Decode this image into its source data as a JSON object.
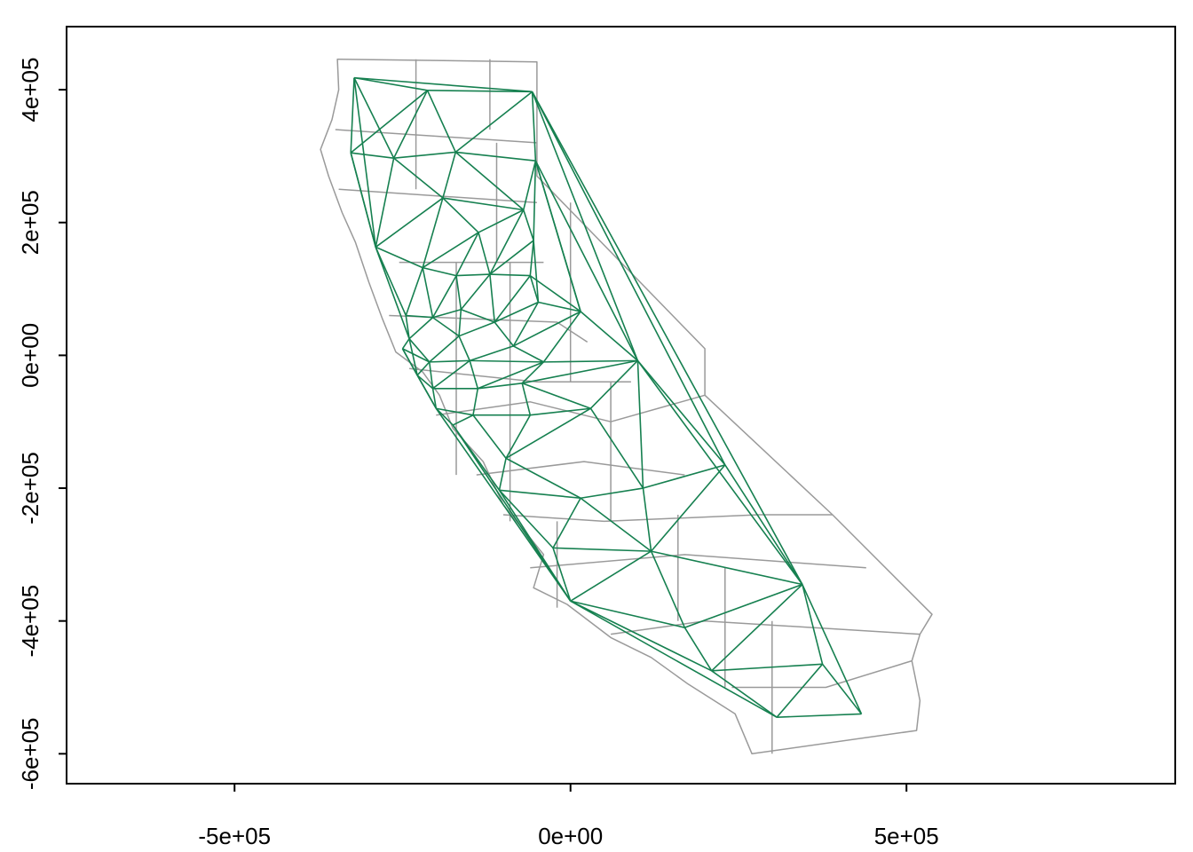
{
  "colors": {
    "county_border": "#9a9a9a",
    "network": "#168050",
    "frame": "#000000",
    "background": "#ffffff"
  },
  "plot": {
    "x_axis": {
      "range": [
        -750000,
        900000
      ],
      "ticks": [
        {
          "value": -500000,
          "label": "-5e+05"
        },
        {
          "value": 0,
          "label": "0e+00"
        },
        {
          "value": 500000,
          "label": "5e+05"
        }
      ]
    },
    "y_axis": {
      "range": [
        -645000,
        495000
      ],
      "ticks": [
        {
          "value": 400000,
          "label": "4e+05"
        },
        {
          "value": 200000,
          "label": "2e+05"
        },
        {
          "value": 0,
          "label": "0e+00"
        },
        {
          "value": -200000,
          "label": "-2e+05"
        },
        {
          "value": -400000,
          "label": "-4e+05"
        },
        {
          "value": -600000,
          "label": "-6e+05"
        }
      ]
    }
  },
  "map_data": {
    "outline": [
      [
        -347000,
        446000
      ],
      [
        -50000,
        442000
      ],
      [
        -50000,
        270000
      ],
      [
        200000,
        10000
      ],
      [
        200000,
        -60000
      ],
      [
        390000,
        -240000
      ],
      [
        538000,
        -390000
      ],
      [
        520000,
        -420000
      ],
      [
        508000,
        -460000
      ],
      [
        520000,
        -520000
      ],
      [
        515000,
        -565000
      ],
      [
        270000,
        -600000
      ],
      [
        245000,
        -540000
      ],
      [
        175000,
        -495000
      ],
      [
        120000,
        -455000
      ],
      [
        60000,
        -425000
      ],
      [
        -5000,
        -375000
      ],
      [
        -55000,
        -350000
      ],
      [
        -40000,
        -300000
      ],
      [
        -100000,
        -225000
      ],
      [
        -130000,
        -160000
      ],
      [
        -175000,
        -110000
      ],
      [
        -195000,
        -60000
      ],
      [
        -220000,
        -25000
      ],
      [
        -260000,
        5000
      ],
      [
        -280000,
        55000
      ],
      [
        -300000,
        110000
      ],
      [
        -320000,
        170000
      ],
      [
        -340000,
        215000
      ],
      [
        -360000,
        270000
      ],
      [
        -372000,
        310000
      ],
      [
        -355000,
        355000
      ],
      [
        -345000,
        400000
      ],
      [
        -347000,
        446000
      ]
    ],
    "county_lines": [
      [
        [
          -350000,
          340000
        ],
        [
          -50000,
          320000
        ]
      ],
      [
        [
          -345000,
          250000
        ],
        [
          -50000,
          230000
        ]
      ],
      [
        [
          -255000,
          140000
        ],
        [
          -40000,
          140000
        ]
      ],
      [
        [
          -270000,
          60000
        ],
        [
          -20000,
          50000
        ],
        [
          25000,
          20000
        ]
      ],
      [
        [
          -240000,
          -20000
        ],
        [
          -50000,
          -40000
        ],
        [
          90000,
          -40000
        ]
      ],
      [
        [
          -200000,
          -90000
        ],
        [
          -60000,
          -70000
        ],
        [
          60000,
          -100000
        ],
        [
          200000,
          -60000
        ]
      ],
      [
        [
          -140000,
          -180000
        ],
        [
          20000,
          -160000
        ],
        [
          170000,
          -180000
        ]
      ],
      [
        [
          -100000,
          -240000
        ],
        [
          50000,
          -250000
        ],
        [
          280000,
          -240000
        ],
        [
          390000,
          -240000
        ]
      ],
      [
        [
          -60000,
          -320000
        ],
        [
          170000,
          -300000
        ],
        [
          440000,
          -320000
        ]
      ],
      [
        [
          60000,
          -420000
        ],
        [
          200000,
          -400000
        ],
        [
          520000,
          -420000
        ]
      ],
      [
        [
          240000,
          -500000
        ],
        [
          380000,
          -500000
        ],
        [
          508000,
          -460000
        ]
      ],
      [
        [
          -120000,
          446000
        ],
        [
          -120000,
          340000
        ]
      ],
      [
        [
          -230000,
          446000
        ],
        [
          -230000,
          250000
        ]
      ],
      [
        [
          -110000,
          320000
        ],
        [
          -110000,
          140000
        ]
      ],
      [
        [
          -170000,
          140000
        ],
        [
          -170000,
          -180000
        ]
      ],
      [
        [
          -90000,
          140000
        ],
        [
          -90000,
          -250000
        ]
      ],
      [
        [
          0,
          230000
        ],
        [
          0,
          -40000
        ]
      ],
      [
        [
          60000,
          -40000
        ],
        [
          60000,
          -250000
        ]
      ],
      [
        [
          160000,
          -240000
        ],
        [
          160000,
          -400000
        ]
      ],
      [
        [
          300000,
          -400000
        ],
        [
          300000,
          -600000
        ]
      ],
      [
        [
          230000,
          -320000
        ],
        [
          230000,
          -500000
        ]
      ],
      [
        [
          -20000,
          -250000
        ],
        [
          -20000,
          -380000
        ]
      ]
    ],
    "nodes": [
      [
        -322000,
        418000
      ],
      [
        -213000,
        399000
      ],
      [
        -57000,
        397000
      ],
      [
        -327000,
        305000
      ],
      [
        -263000,
        297000
      ],
      [
        -171000,
        306000
      ],
      [
        -52000,
        293000
      ],
      [
        -190000,
        237000
      ],
      [
        -70000,
        219000
      ],
      [
        -290000,
        163000
      ],
      [
        -137000,
        185000
      ],
      [
        -220000,
        132000
      ],
      [
        -170000,
        120000
      ],
      [
        -120000,
        122000
      ],
      [
        -55000,
        173000
      ],
      [
        -60000,
        120000
      ],
      [
        -245000,
        60000
      ],
      [
        -205000,
        57000
      ],
      [
        -163000,
        69000
      ],
      [
        -113000,
        50000
      ],
      [
        -48000,
        80000
      ],
      [
        15000,
        66000
      ],
      [
        -240000,
        25000
      ],
      [
        -166000,
        29000
      ],
      [
        -85000,
        14000
      ],
      [
        -250000,
        10000
      ],
      [
        -210000,
        -10000
      ],
      [
        -150000,
        -8000
      ],
      [
        -40000,
        -10000
      ],
      [
        100000,
        -8000
      ],
      [
        -228000,
        -30000
      ],
      [
        -205000,
        -50000
      ],
      [
        -138000,
        -50000
      ],
      [
        -72000,
        -42000
      ],
      [
        -200000,
        -80000
      ],
      [
        -145000,
        -90000
      ],
      [
        -60000,
        -90000
      ],
      [
        30000,
        -80000
      ],
      [
        -175000,
        -105000
      ],
      [
        -96000,
        -155000
      ],
      [
        108000,
        -200000
      ],
      [
        230000,
        -165000
      ],
      [
        -106000,
        -203000
      ],
      [
        15000,
        -215000
      ],
      [
        -26000,
        -290000
      ],
      [
        120000,
        -295000
      ],
      [
        345000,
        -345000
      ],
      [
        0,
        -370000
      ],
      [
        170000,
        -410000
      ],
      [
        210000,
        -475000
      ],
      [
        375000,
        -465000
      ],
      [
        307000,
        -545000
      ],
      [
        433000,
        -540000
      ]
    ],
    "edges": [
      [
        0,
        1
      ],
      [
        1,
        2
      ],
      [
        0,
        2
      ],
      [
        0,
        3
      ],
      [
        0,
        4
      ],
      [
        1,
        4
      ],
      [
        1,
        5
      ],
      [
        2,
        5
      ],
      [
        2,
        6
      ],
      [
        4,
        5
      ],
      [
        5,
        6
      ],
      [
        3,
        4
      ],
      [
        3,
        9
      ],
      [
        4,
        9
      ],
      [
        4,
        7
      ],
      [
        5,
        7
      ],
      [
        5,
        8
      ],
      [
        6,
        8
      ],
      [
        7,
        8
      ],
      [
        7,
        9
      ],
      [
        7,
        10
      ],
      [
        8,
        10
      ],
      [
        8,
        14
      ],
      [
        6,
        14
      ],
      [
        9,
        11
      ],
      [
        7,
        11
      ],
      [
        10,
        11
      ],
      [
        10,
        12
      ],
      [
        10,
        13
      ],
      [
        8,
        13
      ],
      [
        13,
        14
      ],
      [
        14,
        15
      ],
      [
        13,
        15
      ],
      [
        11,
        12
      ],
      [
        12,
        13
      ],
      [
        9,
        16
      ],
      [
        11,
        16
      ],
      [
        11,
        17
      ],
      [
        12,
        17
      ],
      [
        12,
        18
      ],
      [
        13,
        18
      ],
      [
        13,
        19
      ],
      [
        15,
        19
      ],
      [
        15,
        20
      ],
      [
        14,
        20
      ],
      [
        6,
        21
      ],
      [
        15,
        21
      ],
      [
        20,
        21
      ],
      [
        16,
        17
      ],
      [
        17,
        18
      ],
      [
        18,
        19
      ],
      [
        19,
        20
      ],
      [
        16,
        22
      ],
      [
        17,
        22
      ],
      [
        17,
        23
      ],
      [
        18,
        23
      ],
      [
        19,
        23
      ],
      [
        19,
        24
      ],
      [
        20,
        24
      ],
      [
        21,
        24
      ],
      [
        22,
        25
      ],
      [
        22,
        26
      ],
      [
        23,
        26
      ],
      [
        23,
        27
      ],
      [
        24,
        27
      ],
      [
        24,
        28
      ],
      [
        21,
        28
      ],
      [
        21,
        29
      ],
      [
        28,
        29
      ],
      [
        25,
        26
      ],
      [
        26,
        27
      ],
      [
        27,
        28
      ],
      [
        25,
        30
      ],
      [
        26,
        30
      ],
      [
        26,
        31
      ],
      [
        27,
        31
      ],
      [
        27,
        32
      ],
      [
        28,
        32
      ],
      [
        28,
        33
      ],
      [
        29,
        33
      ],
      [
        30,
        31
      ],
      [
        31,
        32
      ],
      [
        32,
        33
      ],
      [
        30,
        34
      ],
      [
        31,
        34
      ],
      [
        32,
        35
      ],
      [
        34,
        35
      ],
      [
        33,
        36
      ],
      [
        35,
        36
      ],
      [
        29,
        37
      ],
      [
        33,
        37
      ],
      [
        36,
        37
      ],
      [
        34,
        38
      ],
      [
        35,
        38
      ],
      [
        35,
        39
      ],
      [
        36,
        39
      ],
      [
        37,
        39
      ],
      [
        29,
        40
      ],
      [
        37,
        40
      ],
      [
        29,
        41
      ],
      [
        40,
        41
      ],
      [
        38,
        42
      ],
      [
        39,
        42
      ],
      [
        39,
        43
      ],
      [
        40,
        43
      ],
      [
        42,
        43
      ],
      [
        42,
        44
      ],
      [
        43,
        44
      ],
      [
        43,
        45
      ],
      [
        40,
        45
      ],
      [
        41,
        45
      ],
      [
        41,
        46
      ],
      [
        45,
        46
      ],
      [
        44,
        45
      ],
      [
        44,
        47
      ],
      [
        45,
        47
      ],
      [
        47,
        48
      ],
      [
        45,
        48
      ],
      [
        46,
        48
      ],
      [
        47,
        49
      ],
      [
        48,
        49
      ],
      [
        46,
        49
      ],
      [
        46,
        50
      ],
      [
        49,
        50
      ],
      [
        49,
        51
      ],
      [
        50,
        51
      ],
      [
        50,
        52
      ],
      [
        51,
        52
      ],
      [
        46,
        52
      ],
      [
        38,
        47
      ],
      [
        34,
        47
      ],
      [
        30,
        34
      ],
      [
        2,
        29
      ],
      [
        2,
        41
      ],
      [
        6,
        29
      ],
      [
        6,
        21
      ],
      [
        22,
        30
      ],
      [
        25,
        30
      ],
      [
        9,
        22
      ],
      [
        3,
        9
      ],
      [
        0,
        9
      ],
      [
        42,
        47
      ],
      [
        47,
        51
      ],
      [
        29,
        46
      ],
      [
        2,
        46
      ],
      [
        1,
        3
      ]
    ]
  }
}
